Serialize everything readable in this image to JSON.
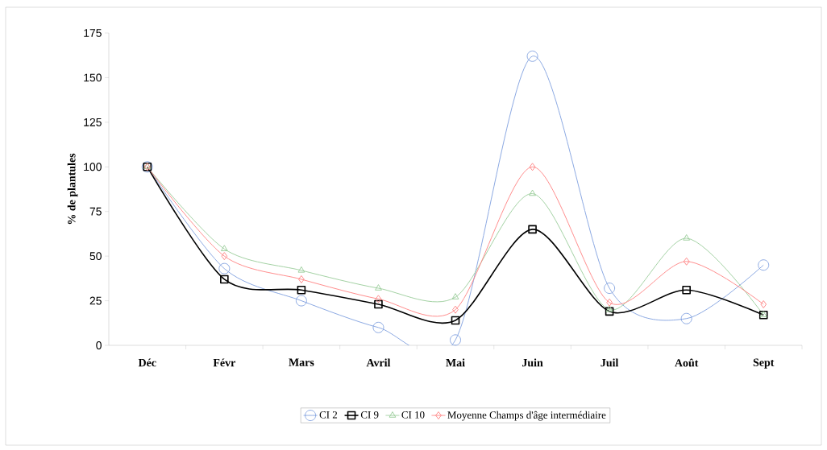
{
  "chart_data": {
    "type": "line",
    "ylabel": "% de plantules",
    "categories": [
      "Déc",
      "Févr",
      "Mars",
      "Avril",
      "Mai",
      "Juin",
      "Juil",
      "Août",
      "Sept"
    ],
    "series": [
      {
        "name": "CI 2",
        "color": "#7f9fdf",
        "marker": "circle",
        "values": [
          100,
          43,
          25,
          10,
          3,
          162,
          32,
          15,
          45
        ]
      },
      {
        "name": "CI 9",
        "color": "#000000",
        "marker": "square",
        "values": [
          100,
          37,
          31,
          23,
          14,
          65,
          19,
          31,
          17
        ]
      },
      {
        "name": "CI 10",
        "color": "#99cc99",
        "marker": "triangle",
        "values": [
          100,
          54,
          42,
          32,
          27,
          85,
          20,
          60,
          17
        ]
      },
      {
        "name": "Moyenne Champs d'âge intermédiaire",
        "color": "#ff8080",
        "marker": "diamond",
        "values": [
          100,
          50,
          37,
          26,
          20,
          100,
          24,
          47,
          23
        ]
      }
    ],
    "ylim": [
      0,
      175
    ],
    "yticks": [
      0,
      25,
      50,
      75,
      100,
      125,
      150,
      175
    ],
    "legend": "bottom"
  }
}
